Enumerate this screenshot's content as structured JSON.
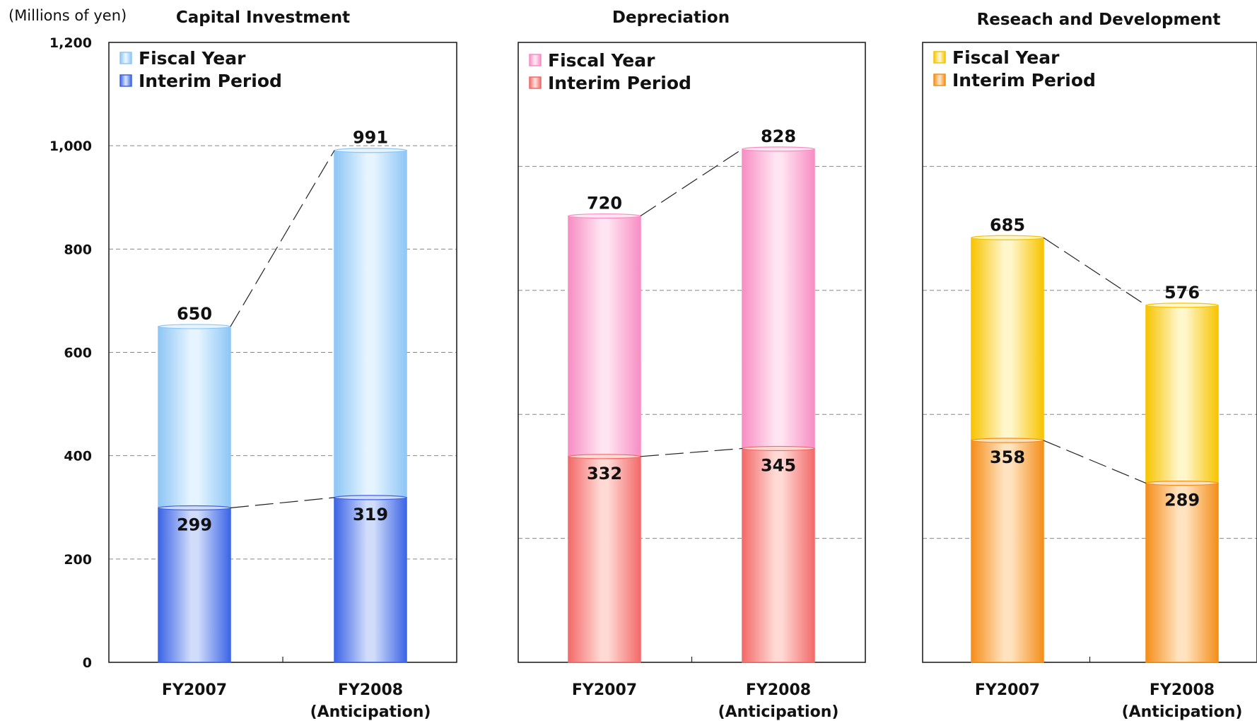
{
  "unit_label": "(Millions of yen)",
  "chart_data": [
    {
      "type": "bar",
      "title": "Capital Investment",
      "categories": [
        "FY2007",
        "FY2008"
      ],
      "category_sublabels": [
        "",
        "(Anticipation)"
      ],
      "series": [
        {
          "name": "Fiscal Year",
          "values": [
            650,
            991
          ]
        },
        {
          "name": "Interim Period",
          "values": [
            299,
            319
          ]
        }
      ],
      "ylim": [
        0,
        1200
      ],
      "yticks": [
        "0",
        "200",
        "400",
        "600",
        "800",
        "1,000",
        "1,200"
      ],
      "grid": true,
      "legend": "top-left",
      "colors": {
        "fiscal_edge": "#8ec6f6",
        "fiscal_center": "#e6f4ff",
        "interim_edge": "#3c64e6",
        "interim_center": "#d0dcfa"
      }
    },
    {
      "type": "bar",
      "title": "Depreciation",
      "categories": [
        "FY2007",
        "FY2008"
      ],
      "category_sublabels": [
        "",
        "(Anticipation)"
      ],
      "series": [
        {
          "name": "Fiscal Year",
          "values": [
            720,
            828
          ]
        },
        {
          "name": "Interim Period",
          "values": [
            332,
            345
          ]
        }
      ],
      "ylim": [
        0,
        1000
      ],
      "grid": true,
      "legend": "top-left",
      "colors": {
        "fiscal_edge": "#f78ec4",
        "fiscal_center": "#ffe4f1",
        "interim_edge": "#f26a6a",
        "interim_center": "#ffd9d4"
      }
    },
    {
      "type": "bar",
      "title": "Reseach and Development",
      "categories": [
        "FY2007",
        "FY2008"
      ],
      "category_sublabels": [
        "",
        "(Anticipation)"
      ],
      "series": [
        {
          "name": "Fiscal Year",
          "values": [
            685,
            576
          ]
        },
        {
          "name": "Interim Period",
          "values": [
            358,
            289
          ]
        }
      ],
      "ylim": [
        0,
        1000
      ],
      "grid": true,
      "legend": "top-left",
      "colors": {
        "fiscal_edge": "#f7c400",
        "fiscal_center": "#fff6cc",
        "interim_edge": "#f48e1a",
        "interim_center": "#ffe3c0"
      }
    }
  ]
}
